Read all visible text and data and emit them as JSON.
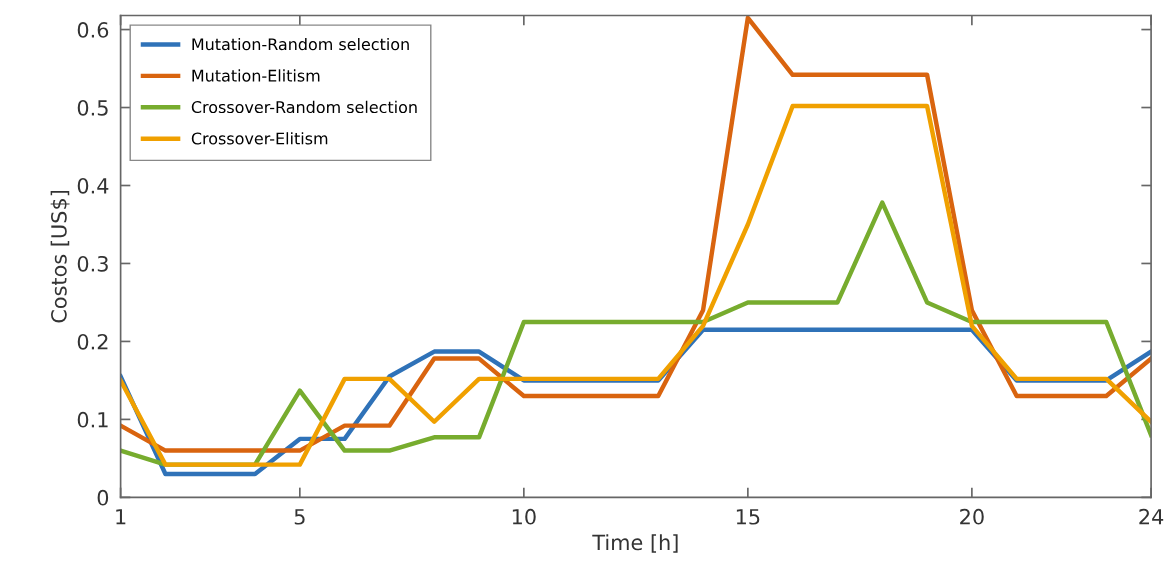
{
  "chart_data": {
    "type": "line",
    "xlabel": "Time [h]",
    "ylabel": "Costos [US$]",
    "x": [
      1,
      2,
      3,
      4,
      5,
      6,
      7,
      8,
      9,
      10,
      11,
      12,
      13,
      14,
      15,
      16,
      17,
      18,
      19,
      20,
      21,
      22,
      23,
      24
    ],
    "series": [
      {
        "name": "Mutation-Random selection",
        "color": "#2f72b8",
        "values": [
          0.155,
          0.03,
          0.03,
          0.03,
          0.075,
          0.075,
          0.155,
          0.187,
          0.187,
          0.15,
          0.15,
          0.15,
          0.15,
          0.215,
          0.215,
          0.215,
          0.215,
          0.215,
          0.215,
          0.215,
          0.15,
          0.15,
          0.15,
          0.187
        ]
      },
      {
        "name": "Mutation-Elitism",
        "color": "#d9640f",
        "values": [
          0.092,
          0.06,
          0.06,
          0.06,
          0.06,
          0.092,
          0.092,
          0.178,
          0.178,
          0.13,
          0.13,
          0.13,
          0.13,
          0.24,
          0.615,
          0.542,
          0.542,
          0.542,
          0.542,
          0.24,
          0.13,
          0.13,
          0.13,
          0.178
        ]
      },
      {
        "name": "Crossover-Random selection",
        "color": "#77ac2e",
        "values": [
          0.06,
          0.042,
          0.042,
          0.042,
          0.137,
          0.06,
          0.06,
          0.077,
          0.077,
          0.225,
          0.225,
          0.225,
          0.225,
          0.225,
          0.25,
          0.25,
          0.25,
          0.378,
          0.25,
          0.225,
          0.225,
          0.225,
          0.225,
          0.08
        ]
      },
      {
        "name": "Crossover-Elitism",
        "color": "#f0a000",
        "values": [
          0.15,
          0.042,
          0.042,
          0.042,
          0.042,
          0.152,
          0.152,
          0.097,
          0.152,
          0.152,
          0.152,
          0.152,
          0.152,
          0.22,
          0.35,
          0.502,
          0.502,
          0.502,
          0.502,
          0.22,
          0.152,
          0.152,
          0.152,
          0.097
        ]
      }
    ],
    "xlim": [
      1,
      24
    ],
    "xticks": [
      1,
      5,
      10,
      15,
      20,
      24
    ],
    "ylim": [
      0,
      0.618
    ],
    "yticks": [
      0,
      0.1,
      0.2,
      0.3,
      0.4,
      0.5,
      0.6
    ],
    "grid": false,
    "legend": "top left",
    "marker": "none",
    "line_style": "solid"
  }
}
